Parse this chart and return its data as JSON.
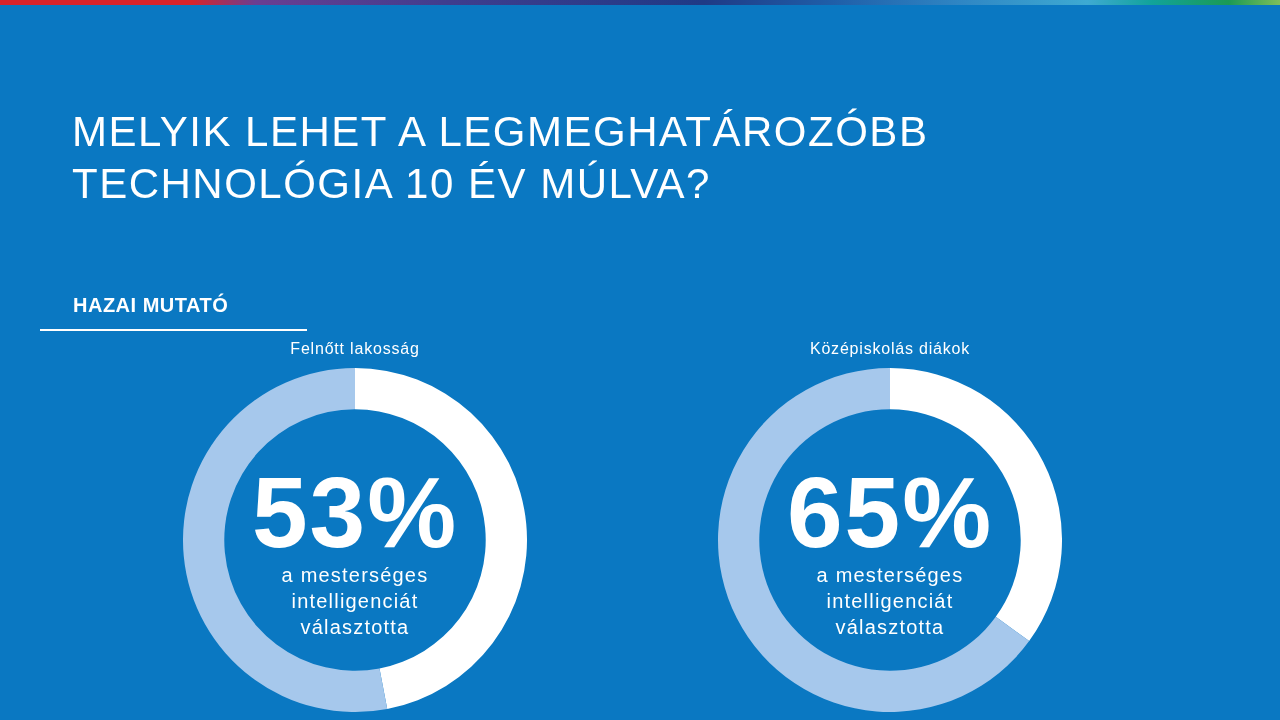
{
  "chart_data": [
    {
      "type": "other",
      "title": "MELYIK LEHET A LEGMEGHATÁROZÓBB TECHNOLÓGIA 10 ÉV MÚLVA?",
      "subtitle": "HAZAI MUTATÓ"
    },
    {
      "type": "donut",
      "title": "Felnőtt lakosság",
      "categories": [
        null,
        null
      ],
      "values": [
        47,
        53
      ],
      "colors": [
        "#ffffff",
        "#a6c8ec"
      ],
      "annotations": [
        "53%",
        "a mesterséges intelligenciát választotta"
      ]
    },
    {
      "type": "donut",
      "title": "Középiskolás diákok",
      "categories": [
        null,
        null
      ],
      "values": [
        35,
        65
      ],
      "colors": [
        "#ffffff",
        "#a6c8ec"
      ],
      "annotations": [
        "65%",
        "a mesterséges intelligenciát választotta"
      ]
    }
  ]
}
